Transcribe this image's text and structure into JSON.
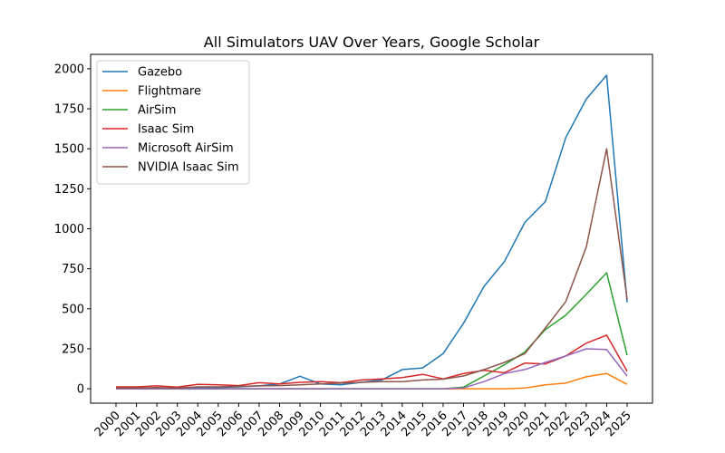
{
  "chart_data": {
    "type": "line",
    "title": "All Simulators UAV Over Years, Google Scholar",
    "xlabel": "",
    "ylabel": "",
    "x": [
      "2000",
      "2001",
      "2002",
      "2003",
      "2004",
      "2005",
      "2006",
      "2007",
      "2008",
      "2009",
      "2010",
      "2011",
      "2012",
      "2013",
      "2014",
      "2015",
      "2016",
      "2017",
      "2018",
      "2019",
      "2020",
      "2021",
      "2022",
      "2023",
      "2024",
      "2025"
    ],
    "ylim": [
      -90,
      2090
    ],
    "yticks": [
      0,
      250,
      500,
      750,
      1000,
      1250,
      1500,
      1750,
      2000
    ],
    "ytick_labels": [
      "0",
      "250",
      "500",
      "750",
      "1000",
      "1250",
      "1500",
      "1750",
      "2000"
    ],
    "grid": false,
    "legend_position": "upper-left",
    "series": [
      {
        "name": "Gazebo",
        "color": "#1f77b4",
        "values": [
          0,
          2,
          5,
          3,
          5,
          8,
          12,
          18,
          30,
          78,
          30,
          25,
          40,
          55,
          120,
          130,
          220,
          410,
          640,
          795,
          1040,
          1170,
          1570,
          1810,
          1960,
          540
        ]
      },
      {
        "name": "Flightmare",
        "color": "#ff7f0e",
        "values": [
          0,
          0,
          0,
          0,
          0,
          0,
          0,
          0,
          0,
          0,
          0,
          0,
          0,
          0,
          0,
          0,
          0,
          0,
          0,
          0,
          5,
          25,
          35,
          75,
          95,
          28
        ]
      },
      {
        "name": "AirSim",
        "color": "#2ca02c",
        "values": [
          0,
          0,
          0,
          0,
          0,
          0,
          0,
          0,
          0,
          0,
          0,
          0,
          0,
          0,
          0,
          0,
          0,
          10,
          80,
          150,
          230,
          370,
          460,
          590,
          725,
          210
        ]
      },
      {
        "name": "Isaac Sim",
        "color": "#d62728",
        "values": [
          12,
          12,
          18,
          10,
          28,
          25,
          20,
          38,
          30,
          40,
          45,
          38,
          55,
          62,
          70,
          90,
          62,
          95,
          115,
          100,
          160,
          155,
          205,
          285,
          335,
          110
        ]
      },
      {
        "name": "Microsoft AirSim",
        "color": "#9467bd",
        "values": [
          0,
          0,
          0,
          0,
          0,
          0,
          0,
          0,
          0,
          0,
          0,
          0,
          0,
          0,
          0,
          0,
          0,
          5,
          45,
          95,
          120,
          165,
          205,
          250,
          245,
          80
        ]
      },
      {
        "name": "NVIDIA Isaac Sim",
        "color": "#8c564b",
        "values": [
          5,
          5,
          8,
          5,
          12,
          12,
          15,
          18,
          20,
          25,
          30,
          35,
          40,
          45,
          45,
          55,
          60,
          80,
          120,
          165,
          220,
          380,
          545,
          885,
          1500,
          560
        ]
      }
    ]
  }
}
